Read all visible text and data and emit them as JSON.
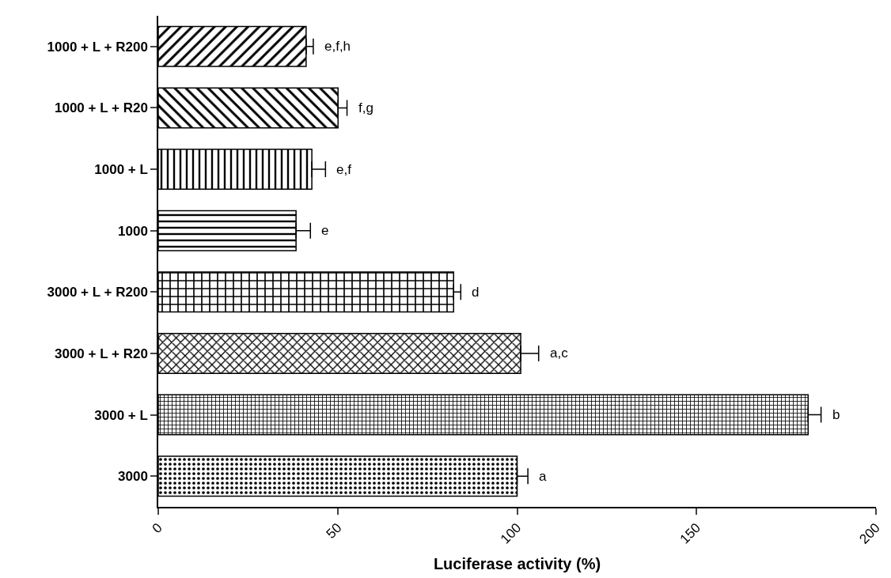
{
  "chart_data": {
    "type": "bar",
    "orientation": "horizontal",
    "xlabel": "Luciferase activity (%)",
    "categories": [
      "1000 + L + R200",
      "1000 + L + R20",
      "1000 + L",
      "1000",
      "3000 + L + R200",
      "3000 + L + R20",
      "3000 + L",
      "3000"
    ],
    "values": [
      41.2,
      50.1,
      42.8,
      38.4,
      82.3,
      101,
      181.1,
      100
    ],
    "errors": [
      2,
      2.5,
      3.8,
      4,
      2,
      5,
      3.6,
      3
    ],
    "colors": [
      "#000000",
      "#000000",
      "#000000",
      "#000000",
      "#000000",
      "#000000",
      "#000000",
      "#000000"
    ],
    "xlim": [
      0,
      200
    ],
    "xticks": [
      0,
      50,
      100,
      150,
      200
    ],
    "annotations": [
      {
        "text": "e,f,h",
        "x": 43.2,
        "y": "1000 + L + R200"
      },
      {
        "text": "f,g",
        "x": 52.6,
        "y": "1000 + L + R20"
      },
      {
        "text": "e,f",
        "x": 46.6,
        "y": "1000 + L"
      },
      {
        "text": "e",
        "x": 42.4,
        "y": "1000"
      },
      {
        "text": "d",
        "x": 84.3,
        "y": "3000 + L + R200"
      },
      {
        "text": "a,c",
        "x": 106,
        "y": "3000 + L + R20"
      },
      {
        "text": "b",
        "x": 184.7,
        "y": "3000 + L"
      },
      {
        "text": "a",
        "x": 102.9,
        "y": "3000"
      }
    ]
  }
}
